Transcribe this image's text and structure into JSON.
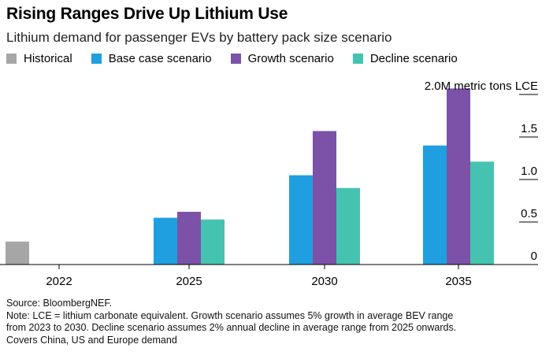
{
  "title": "Rising Ranges Drive Up Lithium Use",
  "subtitle": "Lithium demand for passenger EVs by battery pack size scenario",
  "legend": [
    {
      "label": "Historical",
      "color": "#a6a6a6"
    },
    {
      "label": "Base case scenario",
      "color": "#1f9fdf"
    },
    {
      "label": "Growth scenario",
      "color": "#7b52a8"
    },
    {
      "label": "Decline scenario",
      "color": "#45c3b0"
    }
  ],
  "chart_data": {
    "type": "bar",
    "categories": [
      "2022",
      "2025",
      "2030",
      "2035"
    ],
    "series": [
      {
        "name": "Historical",
        "color": "#a6a6a6",
        "values": [
          0.27,
          null,
          null,
          null
        ]
      },
      {
        "name": "Base case scenario",
        "color": "#1f9fdf",
        "values": [
          null,
          0.55,
          1.05,
          1.4
        ]
      },
      {
        "name": "Growth scenario",
        "color": "#7b52a8",
        "values": [
          null,
          0.62,
          1.57,
          2.07
        ]
      },
      {
        "name": "Decline scenario",
        "color": "#45c3b0",
        "values": [
          null,
          0.53,
          0.9,
          1.21
        ]
      }
    ],
    "ylim": [
      0,
      2.0
    ],
    "yticks": [
      {
        "value": 0,
        "label": "0"
      },
      {
        "value": 0.5,
        "label": "0.5"
      },
      {
        "value": 1.0,
        "label": "1.0"
      },
      {
        "value": 1.5,
        "label": "1.5"
      },
      {
        "value": 2.0,
        "label": "2.0M metric tons LCE"
      }
    ],
    "grid": false
  },
  "footer": {
    "source": "Source: BloombergNEF.",
    "note_lines": [
      "Note: LCE = lithium carbonate equivalent. Growth scenario assumes 5% growth in average BEV range",
      "from 2023 to 2030. Decline scenario assumes 2% annual decline in average range from 2025 onwards.",
      "Covers China, US and Europe demand"
    ]
  }
}
